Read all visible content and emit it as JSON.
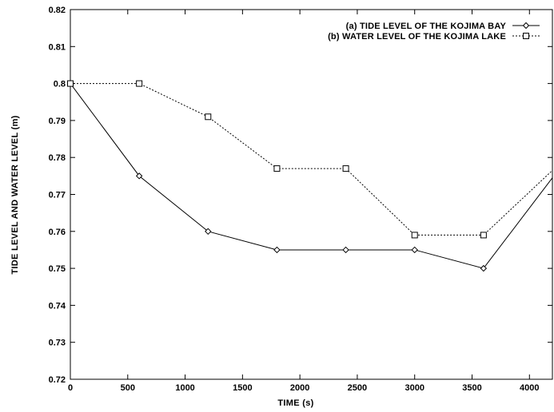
{
  "chart_data": {
    "type": "line",
    "title": "",
    "xlabel": "TIME (s)",
    "ylabel": "TIDE LEVEL AND WATER LEVEL (m)",
    "xlim": [
      0,
      4200
    ],
    "ylim": [
      0.72,
      0.82
    ],
    "x_ticks": [
      "0",
      "500",
      "1000",
      "1500",
      "2000",
      "2500",
      "3000",
      "3500",
      "4000"
    ],
    "y_ticks": [
      "0.72",
      "0.73",
      "0.74",
      "0.75",
      "0.76",
      "0.77",
      "0.78",
      "0.79",
      "0.8",
      "0.81",
      "0.82"
    ],
    "grid": false,
    "legend_position": "top-right",
    "series": [
      {
        "name": "(a) TIDE LEVEL OF THE KOJIMA BAY",
        "marker": "diamond",
        "line_style": "solid",
        "color": "#000000",
        "x": [
          0,
          600,
          1200,
          1800,
          2400,
          3000,
          3600,
          4200
        ],
        "y": [
          0.8,
          0.775,
          0.76,
          0.755,
          0.755,
          0.755,
          0.75,
          0.7745
        ]
      },
      {
        "name": "(b) WATER LEVEL OF THE KOJIMA LAKE",
        "marker": "square",
        "line_style": "dotted",
        "color": "#000000",
        "x": [
          0,
          600,
          1200,
          1800,
          2400,
          3000,
          3600,
          4200
        ],
        "y": [
          0.8,
          0.8,
          0.791,
          0.777,
          0.777,
          0.759,
          0.759,
          0.7765
        ]
      }
    ]
  }
}
